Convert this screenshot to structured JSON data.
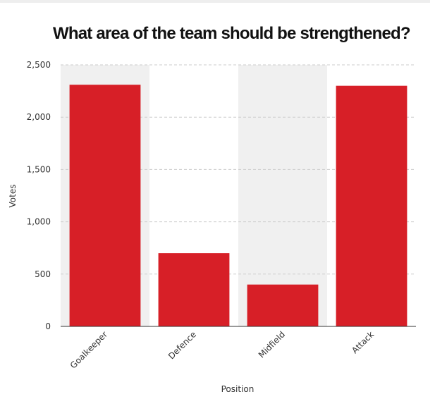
{
  "chart_data": {
    "type": "bar",
    "title": "What area of the team should be strengthened?",
    "x_label": "Position",
    "y_label": "Votes",
    "categories": [
      "Goalkeeper",
      "Defence",
      "Midfield",
      "Attack"
    ],
    "values": [
      2310,
      700,
      400,
      2300
    ],
    "color": "#d71f27",
    "ylim": [
      0,
      2500
    ],
    "yticks": [
      0,
      500,
      {
        "value": 1000,
        "label": "1,000"
      },
      {
        "value": 1500,
        "label": "1,500"
      },
      {
        "value": 2000,
        "label": "2,000"
      },
      {
        "value": 2500,
        "label": "2,500"
      }
    ],
    "grid": true
  }
}
